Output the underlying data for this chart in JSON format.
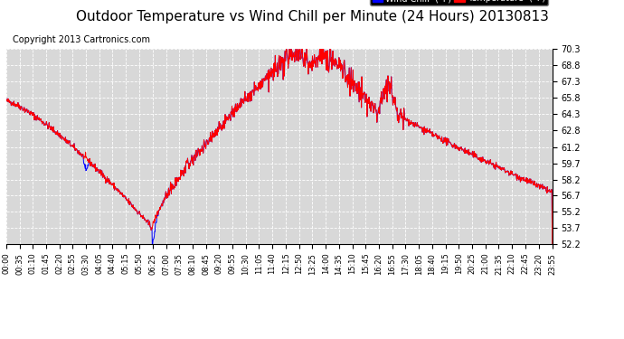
{
  "title": "Outdoor Temperature vs Wind Chill per Minute (24 Hours) 20130813",
  "copyright": "Copyright 2013 Cartronics.com",
  "title_fontsize": 11,
  "copyright_fontsize": 7,
  "background_color": "#ffffff",
  "plot_bg_color": "#d8d8d8",
  "grid_color": "#ffffff",
  "temp_color": "#ff0000",
  "wind_color": "#0000ff",
  "ylim": [
    52.2,
    70.3
  ],
  "yticks": [
    52.2,
    53.7,
    55.2,
    56.7,
    58.2,
    59.7,
    61.2,
    62.8,
    64.3,
    65.8,
    67.3,
    68.8,
    70.3
  ],
  "xtick_labels": [
    "00:00",
    "00:35",
    "01:10",
    "01:45",
    "02:20",
    "02:55",
    "03:30",
    "04:05",
    "04:40",
    "05:15",
    "05:50",
    "06:25",
    "07:00",
    "07:35",
    "08:10",
    "08:45",
    "09:20",
    "09:55",
    "10:30",
    "11:05",
    "11:40",
    "12:15",
    "12:50",
    "13:25",
    "14:00",
    "14:35",
    "15:10",
    "15:45",
    "16:20",
    "16:55",
    "17:30",
    "18:05",
    "18:40",
    "19:15",
    "19:50",
    "20:25",
    "21:00",
    "21:35",
    "22:10",
    "22:45",
    "23:20",
    "23:55"
  ],
  "legend_wind_label": "Wind Chill  (°F)",
  "legend_temp_label": "Temperature  (°F)"
}
